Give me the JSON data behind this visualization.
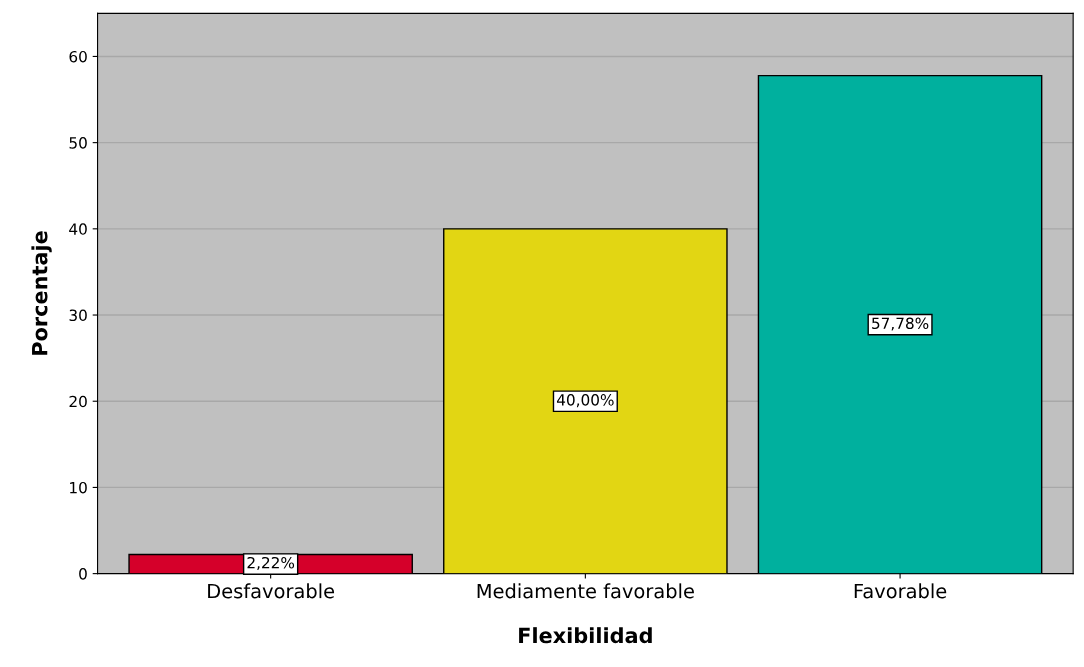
{
  "chart_data": {
    "type": "bar",
    "xlabel": "Flexibilidad",
    "ylabel": "Porcentaje",
    "categories": [
      "Desfavorable",
      "Mediamente favorable",
      "Favorable"
    ],
    "values": [
      2.22,
      40.0,
      57.78
    ],
    "colors": [
      "#d5002a",
      "#e2d613",
      "#00b09e"
    ],
    "value_labels": [
      "2,22%",
      "40,00%",
      "57,78%"
    ],
    "ylim": [
      0,
      65
    ],
    "yticks": [
      0,
      10,
      20,
      30,
      40,
      50,
      60
    ],
    "grid": "y"
  }
}
